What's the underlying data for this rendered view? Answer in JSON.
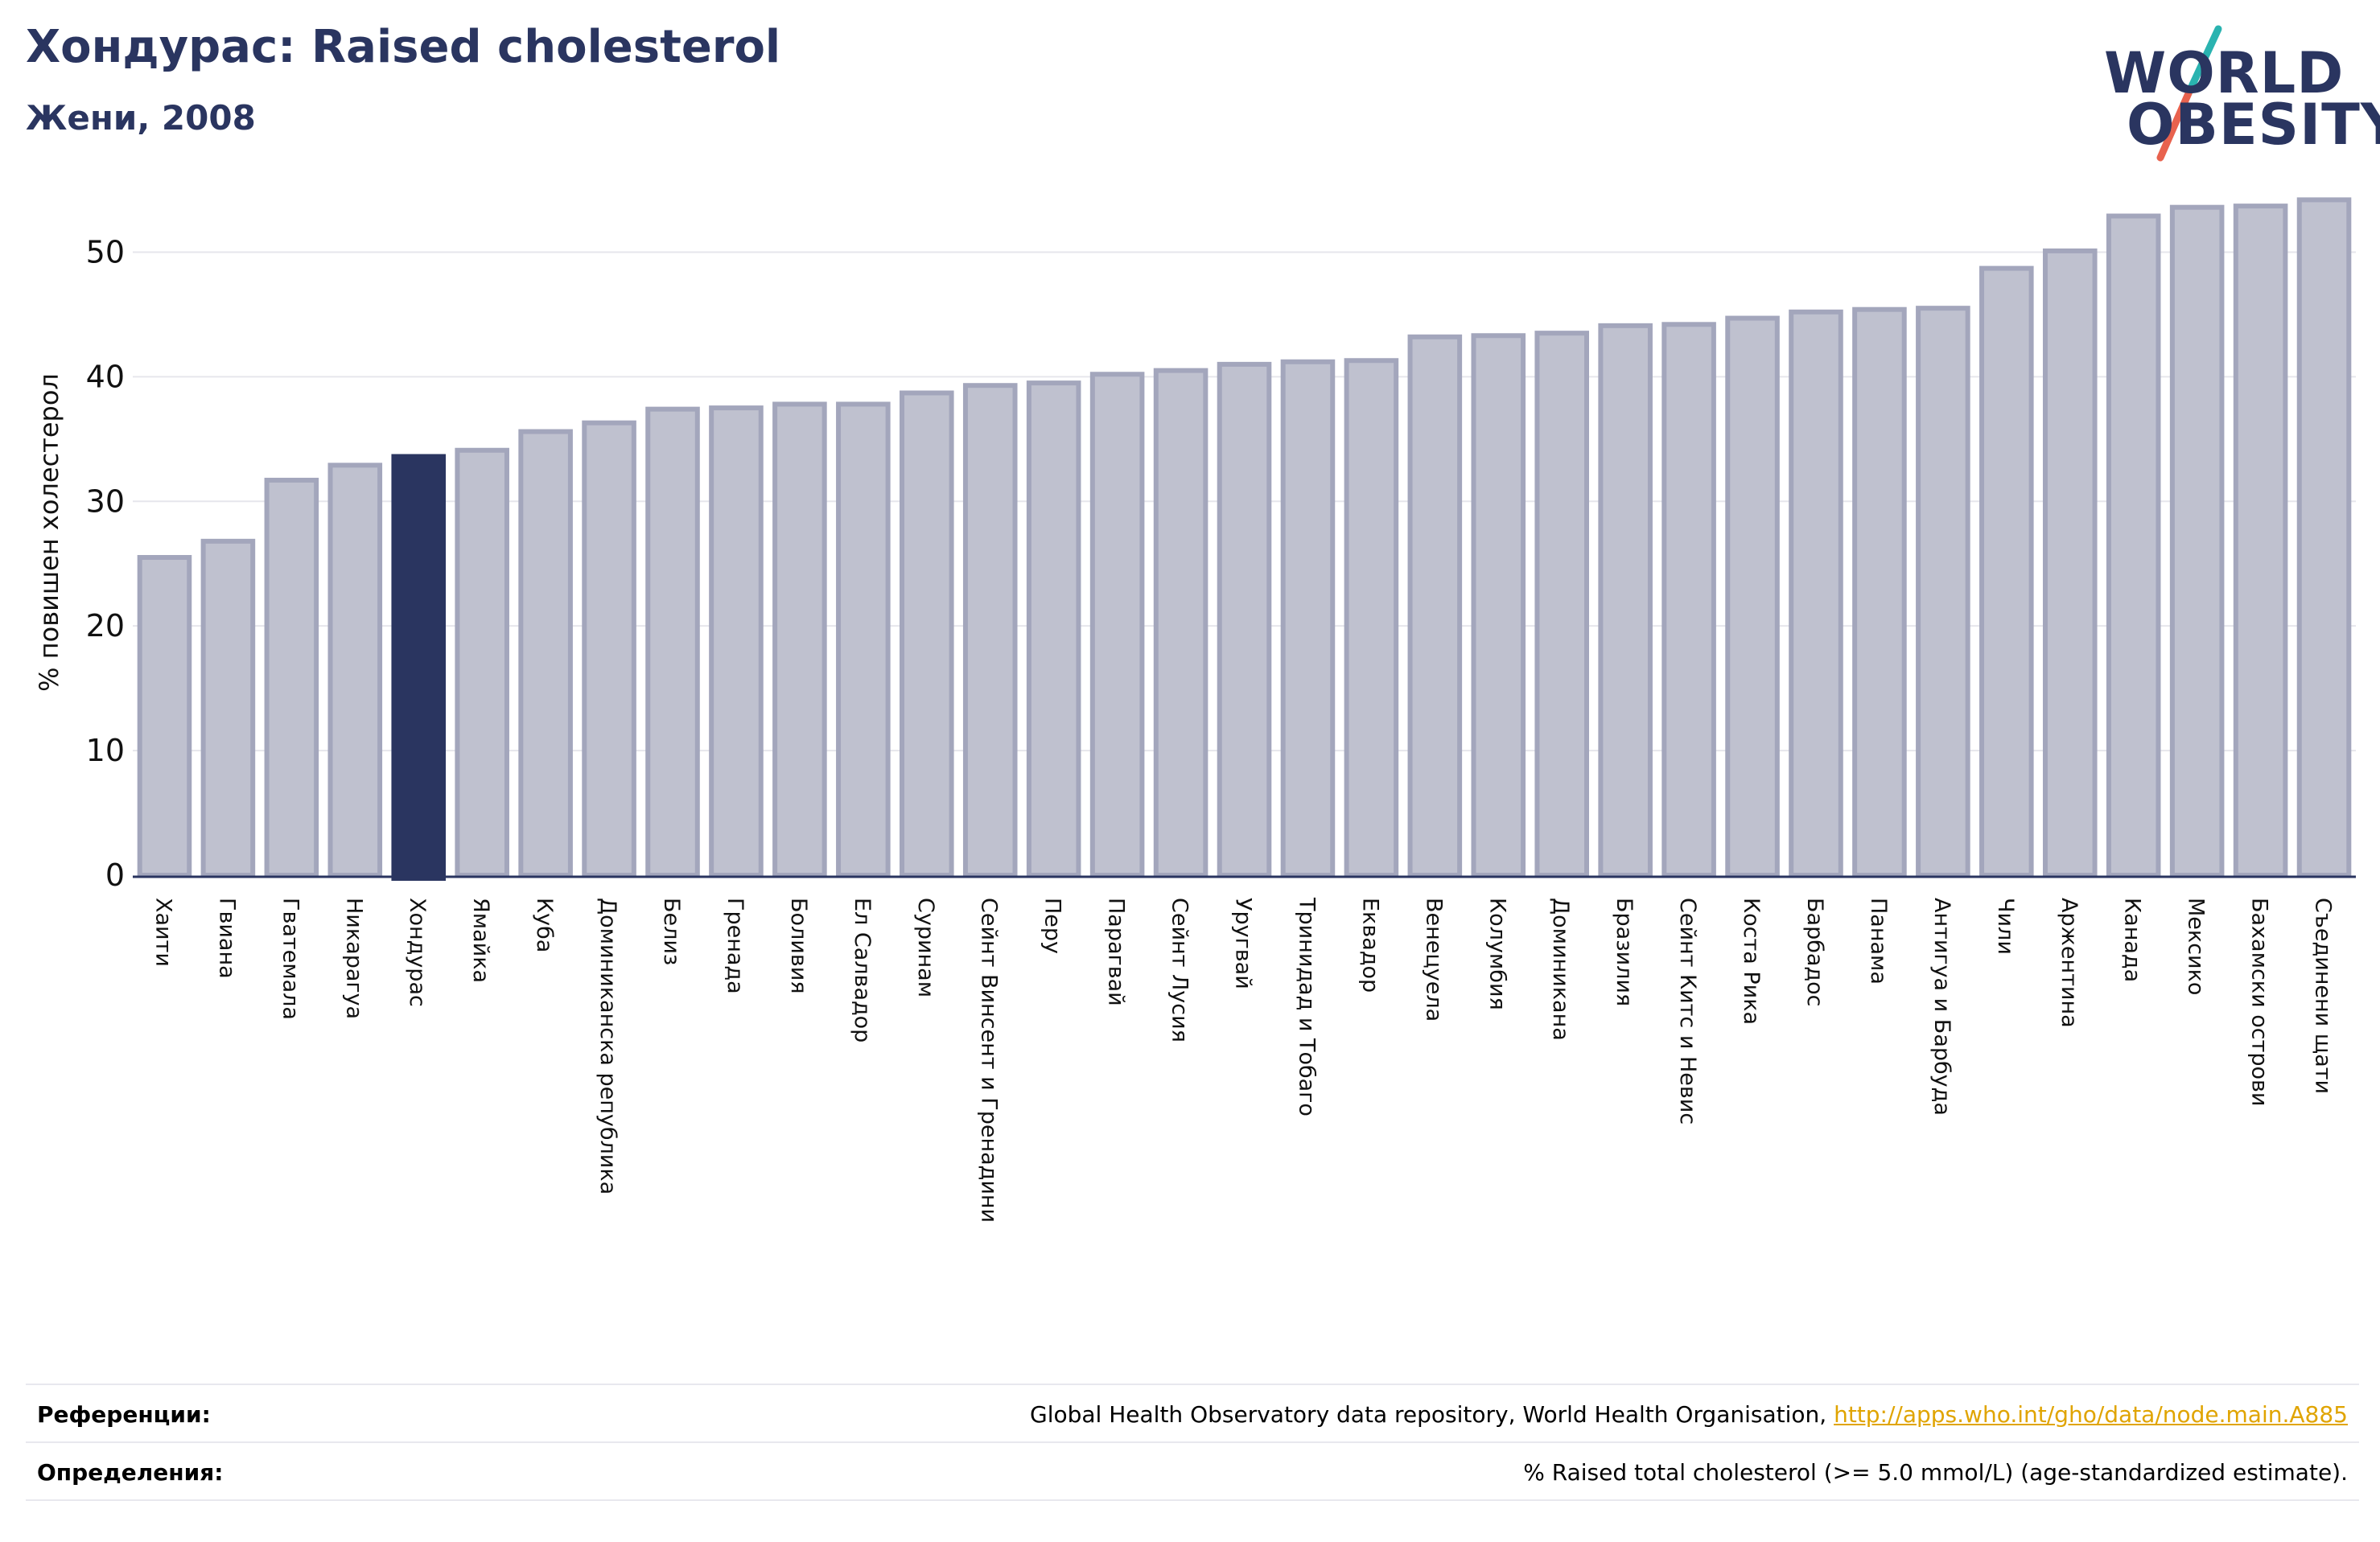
{
  "header": {
    "title": "Хондурас: Raised cholesterol",
    "subtitle": "Жени, 2008"
  },
  "logo": {
    "line1": "WORLD",
    "line2": "OBESITY",
    "colors": {
      "text": "#2a3560",
      "slash_top": "#2ab3b0",
      "slash_bottom": "#e8624e"
    }
  },
  "chart_data": {
    "type": "bar",
    "title": "Хондурас: Raised cholesterol",
    "subtitle": "Жени, 2008",
    "xlabel": "",
    "ylabel": "% повишен холестерол",
    "ylim": [
      0,
      55
    ],
    "yticks": [
      0,
      10,
      20,
      30,
      40,
      50
    ],
    "grid": true,
    "highlight": "Хондурас",
    "colors": {
      "default": "#bfc1cf",
      "default_border": "#a3a6bc",
      "highlight": "#2a3560",
      "grid": "#e6e6ec",
      "axis": "#2a3560"
    },
    "categories": [
      "Хаити",
      "Гвиана",
      "Гватемала",
      "Никарагуа",
      "Хондурас",
      "Ямайка",
      "Куба",
      "Доминиканска република",
      "Белиз",
      "Гренада",
      "Боливия",
      "Ел Салвадор",
      "Суринам",
      "Сейнт Винсент и Гренадини",
      "Перу",
      "Парагвай",
      "Сейнт Лусия",
      "Уругвай",
      "Тринидад и Тобаго",
      "Еквадор",
      "Венецуела",
      "Колумбия",
      "Доминикана",
      "Бразилия",
      "Сейнт Китс и Невис",
      "Коста Рика",
      "Барбадос",
      "Панама",
      "Антигуа и Барбуда",
      "Чили",
      "Аржентина",
      "Канада",
      "Мексико",
      "Бахамски острови",
      "Съединени щати"
    ],
    "values": [
      25.5,
      26.8,
      31.7,
      32.9,
      33.6,
      34.1,
      35.6,
      36.3,
      37.4,
      37.5,
      37.8,
      37.8,
      38.7,
      39.3,
      39.5,
      40.2,
      40.5,
      41.0,
      41.2,
      41.3,
      43.2,
      43.3,
      43.5,
      44.1,
      44.2,
      44.7,
      45.2,
      45.4,
      45.5,
      48.7,
      50.1,
      52.9,
      53.6,
      53.7,
      54.2
    ]
  },
  "references": {
    "label": "Референции:",
    "text": "Global Health Observatory data repository, World Health Organisation, ",
    "link": "http://apps.who.int/gho/data/node.main.A885"
  },
  "definitions": {
    "label": "Определения:",
    "text": "% Raised total cholesterol (>= 5.0 mmol/L) (age-standardized estimate)."
  }
}
